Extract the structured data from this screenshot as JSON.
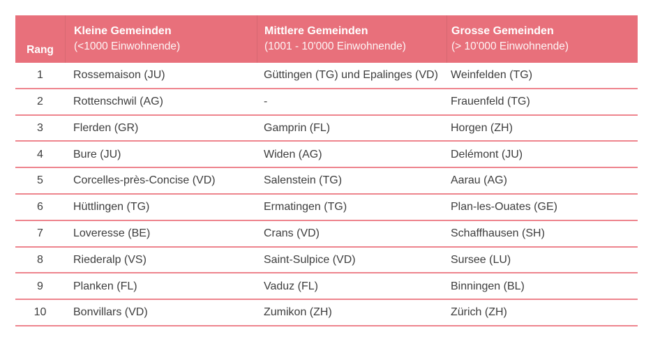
{
  "chart_data": {
    "type": "table",
    "rank_header": "Rang",
    "columns": [
      {
        "title": "Kleine Gemeinden",
        "subtitle": "(<1000 Einwohnende)"
      },
      {
        "title": "Mittlere Gemeinden",
        "subtitle": "(1001 - 10'000 Einwohnende)"
      },
      {
        "title": "Grosse Gemeinden",
        "subtitle": "(> 10'000 Einwohnende)"
      }
    ],
    "rows": [
      {
        "rank": "1",
        "small": "Rossemaison (JU)",
        "medium": "Güttingen (TG) und Epalinges (VD)",
        "large": "Weinfelden (TG)"
      },
      {
        "rank": "2",
        "small": "Rottenschwil (AG)",
        "medium": "-",
        "large": "Frauenfeld (TG)"
      },
      {
        "rank": "3",
        "small": "Flerden (GR)",
        "medium": "Gamprin (FL)",
        "large": "Horgen (ZH)"
      },
      {
        "rank": "4",
        "small": "Bure (JU)",
        "medium": "Widen (AG)",
        "large": "Delémont (JU)"
      },
      {
        "rank": "5",
        "small": "Corcelles-près-Concise (VD)",
        "medium": "Salenstein (TG)",
        "large": "Aarau (AG)"
      },
      {
        "rank": "6",
        "small": "Hüttlingen (TG)",
        "medium": "Ermatingen (TG)",
        "large": "Plan-les-Ouates (GE)"
      },
      {
        "rank": "7",
        "small": "Loveresse (BE)",
        "medium": "Crans (VD)",
        "large": "Schaffhausen (SH)"
      },
      {
        "rank": "8",
        "small": "Riederalp (VS)",
        "medium": "Saint-Sulpice (VD)",
        "large": "Sursee (LU)"
      },
      {
        "rank": "9",
        "small": "Planken (FL)",
        "medium": "Vaduz (FL)",
        "large": "Binningen (BL)"
      },
      {
        "rank": "10",
        "small": "Bonvillars (VD)",
        "medium": "Zumikon (ZH)",
        "large": "Zürich (ZH)"
      }
    ]
  },
  "colors": {
    "header_bg": "#e8707b",
    "row_divider": "#ee848d",
    "text": "#3d3d3d",
    "header_text": "#ffffff"
  }
}
